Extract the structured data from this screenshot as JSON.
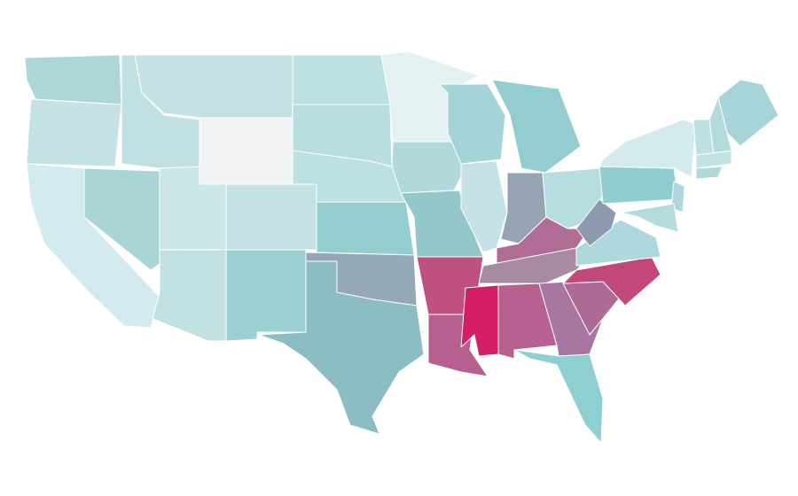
{
  "map": {
    "regions": [
      {
        "color": "#acd6d8"
      },
      {
        "color": "#c5e3e5"
      },
      {
        "color": "#d3ebee"
      },
      {
        "color": "#aad5d7"
      },
      {
        "color": "#c0e0e2"
      },
      {
        "color": "#c4e2e4"
      },
      {
        "color": "#f1f2f4"
      },
      {
        "color": "#cbe6e7"
      },
      {
        "color": "#c2e1e2"
      },
      {
        "color": "#c4e2e3"
      },
      {
        "color": "#9bd0d2"
      },
      {
        "color": "#bde0e1"
      },
      {
        "color": "#b8dee0"
      },
      {
        "color": "#bde0e2"
      },
      {
        "color": "#93cdd0"
      },
      {
        "color": "#95a8b5"
      },
      {
        "color": "#8cbdc3"
      },
      {
        "color": "#e3f1f3"
      },
      {
        "color": "#b1d9db"
      },
      {
        "color": "#93c7ca"
      },
      {
        "color": "#c0507f"
      },
      {
        "color": "#b5608e"
      },
      {
        "color": "#a5d4d6"
      },
      {
        "color": "#c5e3e6"
      },
      {
        "color": "#93cdd0"
      },
      {
        "color": "#96a3b3"
      },
      {
        "color": "#b6dddf"
      },
      {
        "color": "#b06e97"
      },
      {
        "color": "#a98aa3"
      },
      {
        "color": "#d41f66"
      },
      {
        "color": "#b8608f"
      },
      {
        "color": "#a876a0"
      },
      {
        "color": "#8ed0d1"
      },
      {
        "color": "#ac6b93"
      },
      {
        "color": "#c3487a"
      },
      {
        "color": "#aed8db"
      },
      {
        "color": "#8f9ab0"
      },
      {
        "color": "#8fcdd0"
      },
      {
        "color": "#d4ebee"
      },
      {
        "color": "#a7d4d7"
      },
      {
        "color": "#b3dadd"
      },
      {
        "color": "#bfe0e2"
      },
      {
        "color": "#c3e2e4"
      },
      {
        "color": "#b0d8db"
      },
      {
        "color": "#aed8db"
      },
      {
        "color": "#b6dbdd"
      }
    ]
  }
}
